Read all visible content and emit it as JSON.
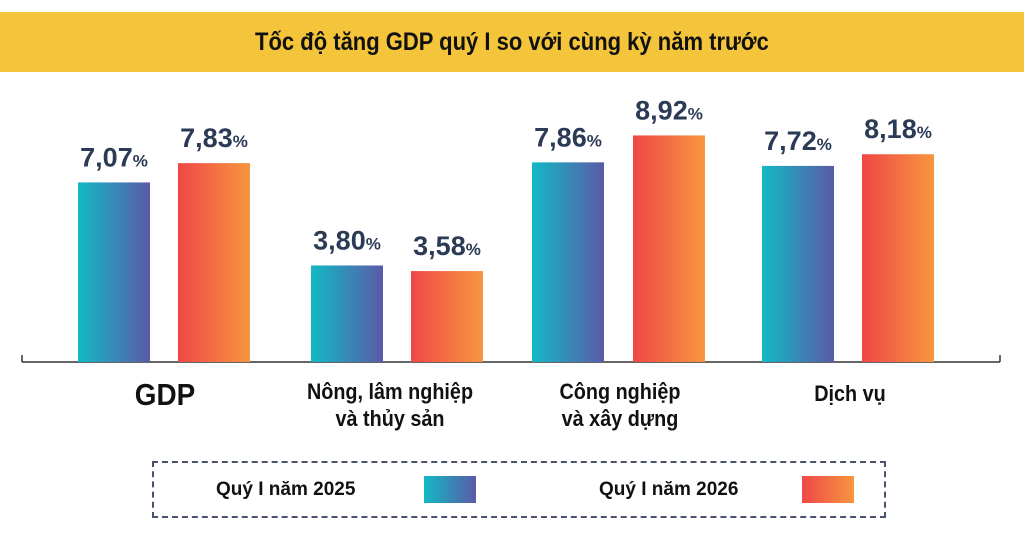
{
  "chart_data": {
    "type": "bar",
    "title": "Tốc độ tăng GDP quý I so với cùng kỳ năm trước",
    "categories": [
      "GDP",
      "Nông, lâm nghiệp và thủy sản",
      "Công nghiệp và xây dựng",
      "Dịch vụ"
    ],
    "category_lines": [
      [
        "GDP"
      ],
      [
        "Nông, lâm nghiệp",
        "và thủy sản"
      ],
      [
        "Công nghiệp",
        "và xây dựng"
      ],
      [
        "Dịch vụ"
      ]
    ],
    "series": [
      {
        "name": "Quý I năm 2025",
        "values": [
          7.07,
          3.8,
          7.86,
          7.72
        ],
        "labels": [
          "7,07",
          "3,80",
          "7,86",
          "7,72"
        ],
        "gradient": [
          "#13b9c4",
          "#5a5aa8"
        ]
      },
      {
        "name": "Quý I năm 2026",
        "values": [
          7.83,
          3.58,
          8.92,
          8.18
        ],
        "labels": [
          "7,83",
          "3,58",
          "8,92",
          "8,18"
        ],
        "gradient": [
          "#ef4747",
          "#f7963f"
        ]
      }
    ],
    "unit": "%",
    "ylim": [
      0,
      10
    ],
    "grid": false,
    "legend": "bottom",
    "label_color": "#2b3a55",
    "title_bg": "#f4c53a"
  }
}
